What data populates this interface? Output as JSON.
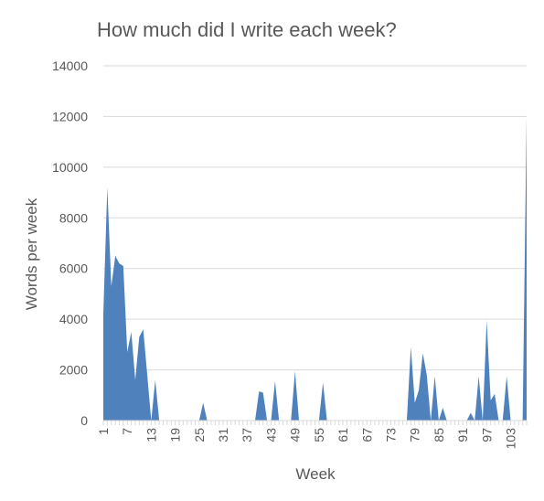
{
  "chart_data": {
    "type": "area",
    "title": "How much did I write each week?",
    "xlabel": "Week",
    "ylabel": "Words per week",
    "ylim": [
      0,
      14000
    ],
    "y_ticks": [
      0,
      2000,
      4000,
      6000,
      8000,
      10000,
      12000,
      14000
    ],
    "y_tick_labels": [
      "0",
      "2000",
      "4000",
      "6000",
      "8000",
      "10000",
      "12000",
      "14000"
    ],
    "x_ticks": [
      1,
      7,
      13,
      19,
      25,
      31,
      37,
      43,
      49,
      55,
      61,
      67,
      73,
      79,
      85,
      91,
      97,
      103
    ],
    "x_tick_labels": [
      "1",
      "7",
      "13",
      "19",
      "25",
      "31",
      "37",
      "43",
      "49",
      "55",
      "61",
      "67",
      "73",
      "79",
      "85",
      "91",
      "97",
      "103"
    ],
    "grid": true,
    "legend": "none",
    "color": "#4f81bd",
    "series": [
      {
        "x": [
          1,
          2,
          3,
          4,
          5,
          6,
          7,
          8,
          9,
          10,
          11,
          12,
          13,
          14,
          15,
          16,
          17,
          18,
          19,
          20,
          21,
          22,
          23,
          24,
          25,
          26,
          27,
          28,
          29,
          30,
          31,
          32,
          33,
          34,
          35,
          36,
          37,
          38,
          39,
          40,
          41,
          42,
          43,
          44,
          45,
          46,
          47,
          48,
          49,
          50,
          51,
          52,
          53,
          54,
          55,
          56,
          57,
          58,
          59,
          60,
          61,
          62,
          63,
          64,
          65,
          66,
          67,
          68,
          69,
          70,
          71,
          72,
          73,
          74,
          75,
          76,
          77,
          78,
          79,
          80,
          81,
          82,
          83,
          84,
          85,
          86,
          87,
          88,
          89,
          90,
          91,
          92,
          93,
          94,
          95,
          96,
          97,
          98,
          99,
          100,
          101,
          102,
          103,
          104,
          105,
          106,
          107
        ],
        "values": [
          4200,
          9200,
          5300,
          6500,
          6200,
          6100,
          2700,
          3500,
          1600,
          3300,
          3600,
          1800,
          0,
          1600,
          0,
          0,
          0,
          0,
          0,
          0,
          0,
          0,
          0,
          0,
          0,
          700,
          0,
          0,
          0,
          0,
          0,
          0,
          0,
          0,
          0,
          0,
          0,
          0,
          0,
          1150,
          1100,
          0,
          0,
          1550,
          0,
          0,
          0,
          0,
          1950,
          0,
          0,
          0,
          0,
          0,
          0,
          1500,
          0,
          0,
          0,
          0,
          0,
          0,
          0,
          0,
          0,
          0,
          0,
          0,
          0,
          0,
          0,
          0,
          0,
          0,
          0,
          0,
          0,
          2900,
          700,
          1200,
          2650,
          1800,
          0,
          1750,
          0,
          500,
          0,
          0,
          0,
          0,
          0,
          0,
          300,
          0,
          1750,
          0,
          3950,
          800,
          1050,
          0,
          0,
          1750,
          0,
          0,
          0,
          0,
          12000
        ]
      }
    ]
  }
}
